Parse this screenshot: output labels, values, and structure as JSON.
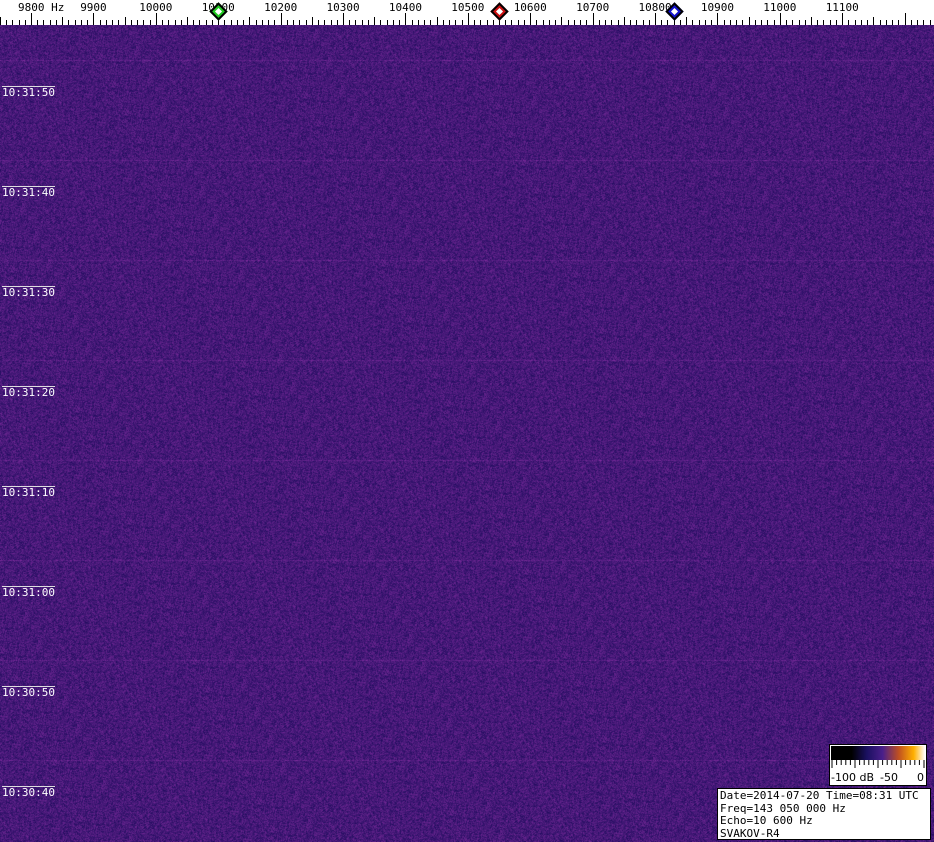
{
  "chart_data": {
    "type": "heatmap",
    "description_kind": "spectrogram waterfall",
    "x_unit": "Hz",
    "x_ticks": [
      9800,
      9900,
      10000,
      10100,
      10200,
      10300,
      10400,
      10500,
      10600,
      10700,
      10800,
      10900,
      11000,
      11100
    ],
    "x_tick_labels": [
      "9800 Hz",
      "9900",
      "10000",
      "10100",
      "10200",
      "10300",
      "10400",
      "10500",
      "10600",
      "10700",
      "10800",
      "10900",
      "11000",
      "11100"
    ],
    "y_tick_labels": [
      "10:31:50",
      "10:31:40",
      "10:31:30",
      "10:31:20",
      "10:31:10",
      "10:31:00",
      "10:30:50",
      "10:30:40"
    ],
    "markers": [
      {
        "freq": 10100,
        "color": "#22cc22"
      },
      {
        "freq": 10550,
        "color": "#cc1111"
      },
      {
        "freq": 10830,
        "color": "#1111cc"
      }
    ],
    "colorbar": {
      "labels": [
        "-100 dB",
        "-50",
        "0"
      ],
      "range": [
        -100,
        0
      ],
      "unit": "dB"
    },
    "background_color": "#3a1c78"
  },
  "info": {
    "line1": "Date=2014-07-20 Time=08:31 UTC",
    "line2": "Freq=143 050 000 Hz",
    "line3": "Echo=10 600 Hz",
    "line4": "SVAKOV-R4"
  }
}
